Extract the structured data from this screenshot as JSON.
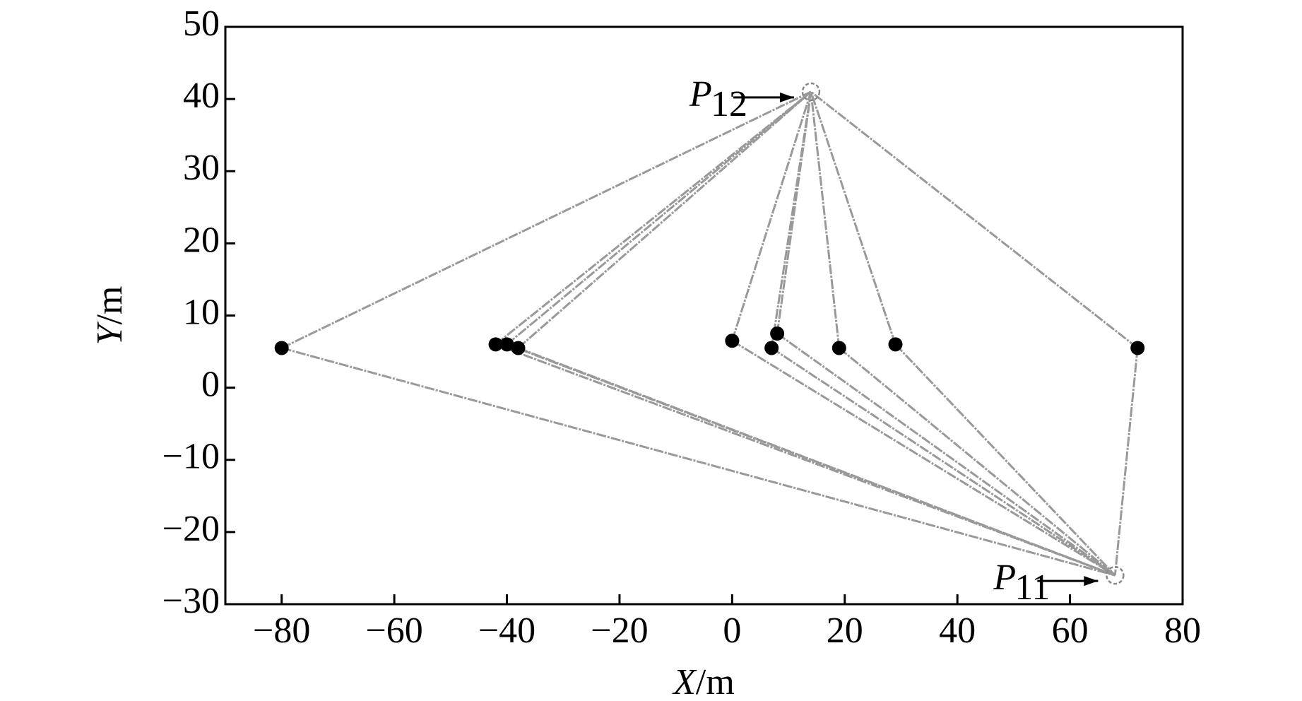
{
  "chart_data": {
    "type": "scatter",
    "x_label": "X/m",
    "y_label": "Y/m",
    "x": [
      -80,
      -42,
      -40,
      -38,
      0,
      7,
      8,
      19,
      29,
      72
    ],
    "values": [
      5.5,
      6,
      6,
      5.5,
      6.5,
      5.5,
      7.5,
      5.5,
      6,
      5.5
    ],
    "color": "#000000",
    "annotations": [
      {
        "label": "P",
        "subscript": "12",
        "x": 14,
        "y": 41
      },
      {
        "label": "P",
        "subscript": "11",
        "x": 68,
        "y": -26
      }
    ],
    "xlim": [
      -90,
      80
    ],
    "xticks": [
      {
        "value": -80,
        "label": "−80"
      },
      {
        "value": -60,
        "label": "−60"
      },
      {
        "value": -40,
        "label": "−40"
      },
      {
        "value": -20,
        "label": "−20"
      },
      0,
      20,
      40,
      60,
      80
    ],
    "ylim": [
      -30,
      50
    ],
    "yticks": [
      {
        "value": -30,
        "label": "−30"
      },
      {
        "value": -20,
        "label": "−20"
      },
      {
        "value": -10,
        "label": "−10"
      },
      0,
      10,
      20,
      30,
      40,
      50
    ]
  }
}
